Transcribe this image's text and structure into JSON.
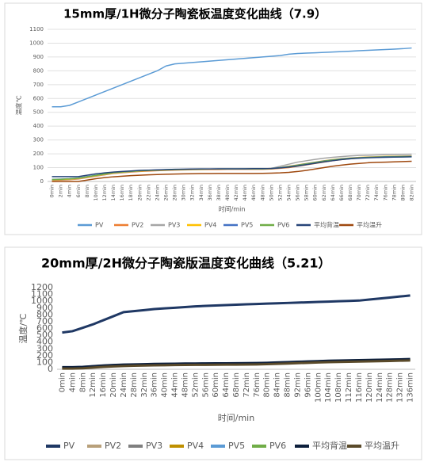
{
  "chart_data": [
    {
      "type": "line",
      "title": "15mm厚/1H微分子陶瓷板温度变化曲线（7.9）",
      "y_label": "温度℃",
      "x_label": "时间/min",
      "grid": true,
      "ylim": [
        0,
        1100
      ],
      "yticks": [
        0,
        100,
        200,
        300,
        400,
        500,
        600,
        700,
        800,
        900,
        1000,
        1100
      ],
      "categories": [
        "0min",
        "2min",
        "4min",
        "6min",
        "8min",
        "10min",
        "12min",
        "14min",
        "16min",
        "18min",
        "20min",
        "22min",
        "24min",
        "26min",
        "28min",
        "30min",
        "32min",
        "34min",
        "36min",
        "38min",
        "40min",
        "42min",
        "44min",
        "46min",
        "48min",
        "50min",
        "52min",
        "54min",
        "56min",
        "58min",
        "60min",
        "62min",
        "64min",
        "66min",
        "68min",
        "70min",
        "72min",
        "74min",
        "76min",
        "78min",
        "80min",
        "82min"
      ],
      "series": [
        {
          "name": "PV",
          "color": "#5b9bd5",
          "values": [
            540,
            540,
            550,
            575,
            600,
            625,
            650,
            675,
            700,
            725,
            750,
            775,
            800,
            835,
            850,
            855,
            860,
            865,
            870,
            875,
            880,
            885,
            890,
            895,
            900,
            905,
            910,
            920,
            925,
            928,
            930,
            933,
            936,
            939,
            942,
            945,
            948,
            951,
            954,
            957,
            960,
            965
          ]
        },
        {
          "name": "PV2",
          "color": "#ed7d31",
          "values": [
            8,
            10,
            13,
            18,
            28,
            38,
            48,
            58,
            63,
            68,
            72,
            75,
            78,
            80,
            82,
            84,
            85,
            86,
            87,
            87,
            88,
            88,
            88,
            88,
            88,
            90,
            95,
            100,
            110,
            120,
            130,
            140,
            150,
            158,
            165,
            170,
            174,
            177,
            179,
            181,
            182,
            183
          ]
        },
        {
          "name": "PV3",
          "color": "#a5a5a5",
          "values": [
            10,
            12,
            15,
            20,
            30,
            40,
            50,
            60,
            65,
            70,
            75,
            78,
            80,
            82,
            85,
            87,
            88,
            89,
            90,
            90,
            90,
            90,
            90,
            90,
            90,
            95,
            110,
            125,
            140,
            150,
            160,
            168,
            175,
            180,
            185,
            188,
            190,
            192,
            194,
            195,
            196,
            197
          ]
        },
        {
          "name": "PV4",
          "color": "#ffc000",
          "values": [
            12,
            14,
            17,
            22,
            32,
            42,
            52,
            62,
            67,
            72,
            76,
            79,
            81,
            83,
            85,
            87,
            88,
            89,
            90,
            90,
            90,
            90,
            90,
            91,
            91,
            93,
            100,
            110,
            120,
            130,
            140,
            150,
            158,
            165,
            170,
            174,
            177,
            179,
            181,
            182,
            183,
            184
          ]
        },
        {
          "name": "PV5",
          "color": "#4472c4",
          "values": [
            15,
            17,
            20,
            25,
            35,
            45,
            55,
            65,
            70,
            74,
            78,
            81,
            83,
            85,
            87,
            88,
            89,
            90,
            90,
            91,
            91,
            91,
            92,
            92,
            92,
            94,
            100,
            108,
            118,
            128,
            138,
            148,
            156,
            163,
            168,
            172,
            175,
            177,
            179,
            180,
            181,
            182
          ]
        },
        {
          "name": "PV6",
          "color": "#70ad47",
          "values": [
            14,
            16,
            19,
            24,
            34,
            44,
            54,
            64,
            69,
            73,
            77,
            80,
            82,
            84,
            86,
            87,
            88,
            89,
            90,
            90,
            91,
            91,
            91,
            91,
            91,
            93,
            99,
            106,
            116,
            126,
            136,
            146,
            154,
            161,
            166,
            170,
            173,
            175,
            177,
            178,
            179,
            180
          ]
        },
        {
          "name": "平均背温",
          "color": "#264478",
          "values": [
            35,
            35,
            35,
            35,
            45,
            55,
            62,
            68,
            72,
            76,
            80,
            82,
            84,
            86,
            88,
            89,
            90,
            91,
            91,
            92,
            92,
            92,
            92,
            93,
            93,
            94,
            98,
            104,
            112,
            122,
            132,
            142,
            150,
            158,
            164,
            168,
            171,
            173,
            175,
            176,
            177,
            178
          ]
        },
        {
          "name": "平均温升",
          "color": "#9e480e",
          "values": [
            0,
            0,
            0,
            0,
            10,
            20,
            28,
            34,
            38,
            42,
            45,
            48,
            50,
            52,
            54,
            55,
            56,
            57,
            57,
            58,
            58,
            58,
            58,
            58,
            59,
            60,
            62,
            66,
            72,
            80,
            90,
            100,
            110,
            118,
            125,
            130,
            135,
            138,
            140,
            142,
            144,
            146
          ]
        }
      ]
    },
    {
      "type": "line",
      "title": "20mm厚/2H微分子陶瓷版温度变化曲线（5.21）",
      "y_label": "温度/℃",
      "x_label": "时间/min",
      "grid": false,
      "ylim": [
        0,
        1200
      ],
      "yticks": [
        0,
        100,
        200,
        300,
        400,
        500,
        600,
        700,
        800,
        900,
        1000,
        1100,
        1200
      ],
      "categories": [
        "0min",
        "4min",
        "8min",
        "12min",
        "16min",
        "20min",
        "24min",
        "28min",
        "32min",
        "36min",
        "40min",
        "44min",
        "48min",
        "52min",
        "56min",
        "60min",
        "64min",
        "68min",
        "72min",
        "76min",
        "80min",
        "84min",
        "88min",
        "92min",
        "96min",
        "100min",
        "104min",
        "108min",
        "112min",
        "116min",
        "120min",
        "124min",
        "128min",
        "132min",
        "136min"
      ],
      "series": [
        {
          "name": "PV",
          "color": "#1f3864",
          "values": [
            540,
            560,
            610,
            660,
            720,
            780,
            840,
            855,
            870,
            885,
            895,
            905,
            915,
            925,
            932,
            938,
            944,
            950,
            955,
            960,
            965,
            970,
            975,
            980,
            985,
            990,
            995,
            1000,
            1005,
            1010,
            1025,
            1040,
            1055,
            1070,
            1085
          ]
        },
        {
          "name": "PV2",
          "color": "#b8a07a",
          "values": [
            20,
            22,
            28,
            38,
            48,
            55,
            60,
            64,
            67,
            70,
            72,
            74,
            76,
            77,
            78,
            79,
            80,
            81,
            82,
            84,
            87,
            92,
            97,
            102,
            107,
            112,
            117,
            120,
            123,
            126,
            129,
            132,
            135,
            138,
            142
          ]
        },
        {
          "name": "PV3",
          "color": "#7f7f7f",
          "values": [
            23,
            25,
            31,
            41,
            51,
            58,
            63,
            67,
            70,
            73,
            75,
            77,
            79,
            80,
            81,
            82,
            83,
            84,
            85,
            87,
            90,
            95,
            100,
            105,
            110,
            115,
            120,
            123,
            126,
            129,
            132,
            135,
            138,
            141,
            145
          ]
        },
        {
          "name": "PV4",
          "color": "#bf9000",
          "values": [
            22,
            24,
            30,
            40,
            50,
            57,
            62,
            66,
            69,
            72,
            74,
            76,
            78,
            79,
            80,
            81,
            82,
            83,
            84,
            86,
            89,
            94,
            99,
            104,
            109,
            114,
            119,
            122,
            125,
            128,
            131,
            134,
            137,
            140,
            144
          ]
        },
        {
          "name": "PV5",
          "color": "#5b9bd5",
          "values": [
            25,
            27,
            33,
            43,
            53,
            60,
            65,
            69,
            72,
            75,
            77,
            79,
            81,
            82,
            83,
            84,
            85,
            86,
            87,
            89,
            92,
            97,
            102,
            107,
            112,
            117,
            122,
            125,
            128,
            131,
            134,
            137,
            140,
            143,
            147
          ]
        },
        {
          "name": "PV6",
          "color": "#70ad47",
          "values": [
            21,
            23,
            29,
            39,
            49,
            56,
            61,
            65,
            68,
            71,
            73,
            75,
            77,
            78,
            79,
            80,
            81,
            82,
            83,
            85,
            88,
            93,
            98,
            103,
            108,
            113,
            118,
            121,
            124,
            127,
            130,
            133,
            136,
            139,
            143
          ]
        },
        {
          "name": "平均背温",
          "color": "#0d1f3c",
          "values": [
            30,
            30,
            35,
            45,
            55,
            62,
            68,
            72,
            75,
            78,
            80,
            82,
            84,
            85,
            86,
            87,
            88,
            89,
            90,
            92,
            95,
            100,
            105,
            110,
            115,
            120,
            125,
            128,
            131,
            134,
            137,
            140,
            143,
            146,
            150
          ]
        },
        {
          "name": "平均温升",
          "color": "#5a4a2a",
          "values": [
            10,
            10,
            15,
            25,
            35,
            42,
            48,
            52,
            55,
            58,
            60,
            62,
            64,
            65,
            66,
            67,
            68,
            69,
            70,
            72,
            75,
            80,
            85,
            90,
            95,
            100,
            105,
            108,
            111,
            114,
            117,
            120,
            123,
            126,
            130
          ]
        }
      ]
    }
  ]
}
